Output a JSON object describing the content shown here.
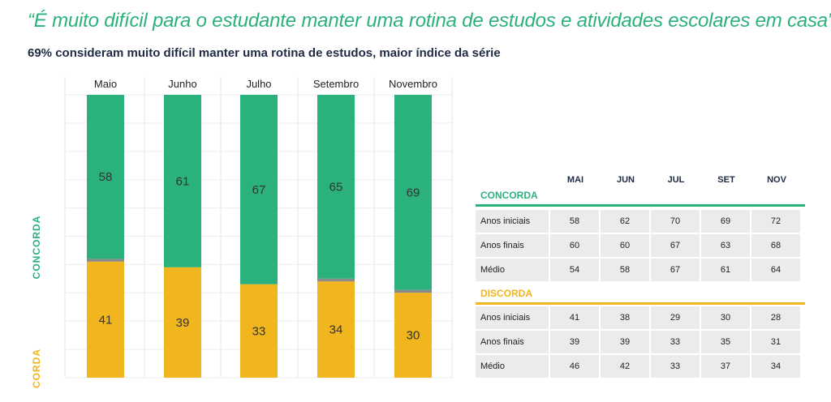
{
  "quote": "“É muito difícil para o estudante manter uma rotina de estudos e atividades escolares em casa”",
  "subtitle": "69% consideram muito difícil manter uma rotina de estudos, maior índice da série",
  "colors": {
    "concorda": "#2bb17c",
    "discorda": "#f1b51d",
    "neutral": "#8a8a8a",
    "cell": "#ebebeb"
  },
  "chart_data": [
    {
      "type": "bar",
      "stacked": true,
      "categories": [
        "Maio",
        "Junho",
        "Julho",
        "Setembro",
        "Novembro"
      ],
      "series": [
        {
          "name": "CONCORDA",
          "values": [
            58,
            61,
            67,
            65,
            69
          ]
        },
        {
          "name": "DISCORDA",
          "values": [
            41,
            39,
            33,
            34,
            30
          ]
        }
      ],
      "ylim": [
        0,
        100
      ],
      "grid": true
    },
    {
      "type": "table",
      "columns": [
        "MAI",
        "JUN",
        "JUL",
        "SET",
        "NOV"
      ],
      "sections": [
        {
          "title": "CONCORDA",
          "rows": [
            {
              "label": "Anos iniciais",
              "values": [
                58,
                62,
                70,
                69,
                72
              ]
            },
            {
              "label": "Anos finais",
              "values": [
                60,
                60,
                67,
                63,
                68
              ]
            },
            {
              "label": "Médio",
              "values": [
                54,
                58,
                67,
                61,
                64
              ]
            }
          ]
        },
        {
          "title": "DISCORDA",
          "rows": [
            {
              "label": "Anos iniciais",
              "values": [
                41,
                38,
                29,
                30,
                28
              ]
            },
            {
              "label": "Anos finais",
              "values": [
                39,
                39,
                33,
                35,
                31
              ]
            },
            {
              "label": "Médio",
              "values": [
                46,
                42,
                33,
                37,
                34
              ]
            }
          ]
        }
      ]
    }
  ]
}
